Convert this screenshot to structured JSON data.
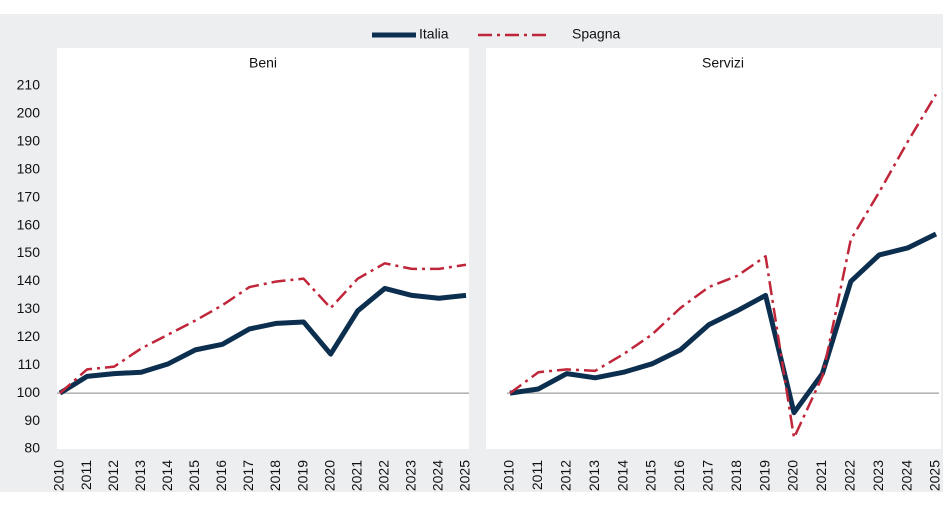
{
  "chart_data": [
    {
      "type": "line",
      "title": "Beni",
      "categories": [
        "2010",
        "2011",
        "2012",
        "2013",
        "2014",
        "2015",
        "2016",
        "2017",
        "2018",
        "2019",
        "2020",
        "2021",
        "2022",
        "2023",
        "2024",
        "2025"
      ],
      "series": [
        {
          "name": "Italia",
          "color": "#0d2f4f",
          "values": [
            100,
            106,
            107,
            107.5,
            110.5,
            115.5,
            117.5,
            123,
            125,
            125.5,
            114,
            129.5,
            137.5,
            135,
            134,
            135
          ]
        },
        {
          "name": "Spagna",
          "color": "#c0263a",
          "values": [
            100,
            108.5,
            109.5,
            116,
            121,
            126,
            131.5,
            138,
            140,
            141,
            130.5,
            141,
            146.5,
            144.5,
            144.5,
            146
          ]
        }
      ],
      "ylim": [
        80,
        210
      ],
      "yticks": [
        80,
        90,
        100,
        110,
        120,
        130,
        140,
        150,
        160,
        170,
        180,
        190,
        200,
        210
      ],
      "reference_line": 100
    },
    {
      "type": "line",
      "title": "Servizi",
      "categories": [
        "2010",
        "2011",
        "2012",
        "2013",
        "2014",
        "2015",
        "2016",
        "2017",
        "2018",
        "2019",
        "2020",
        "2021",
        "2022",
        "2023",
        "2024",
        "2025"
      ],
      "series": [
        {
          "name": "Italia",
          "color": "#0d2f4f",
          "values": [
            100,
            101.5,
            107,
            105.5,
            107.5,
            110.5,
            115.5,
            124.5,
            129.5,
            135,
            93,
            107,
            140,
            149.5,
            152,
            157
          ]
        },
        {
          "name": "Spagna",
          "color": "#c0263a",
          "values": [
            100,
            107.5,
            108.5,
            108,
            114,
            121,
            130.5,
            138,
            142,
            149,
            84,
            106,
            155,
            172,
            190,
            207
          ]
        }
      ],
      "ylim": [
        80,
        210
      ],
      "reference_line": 100
    }
  ]
}
